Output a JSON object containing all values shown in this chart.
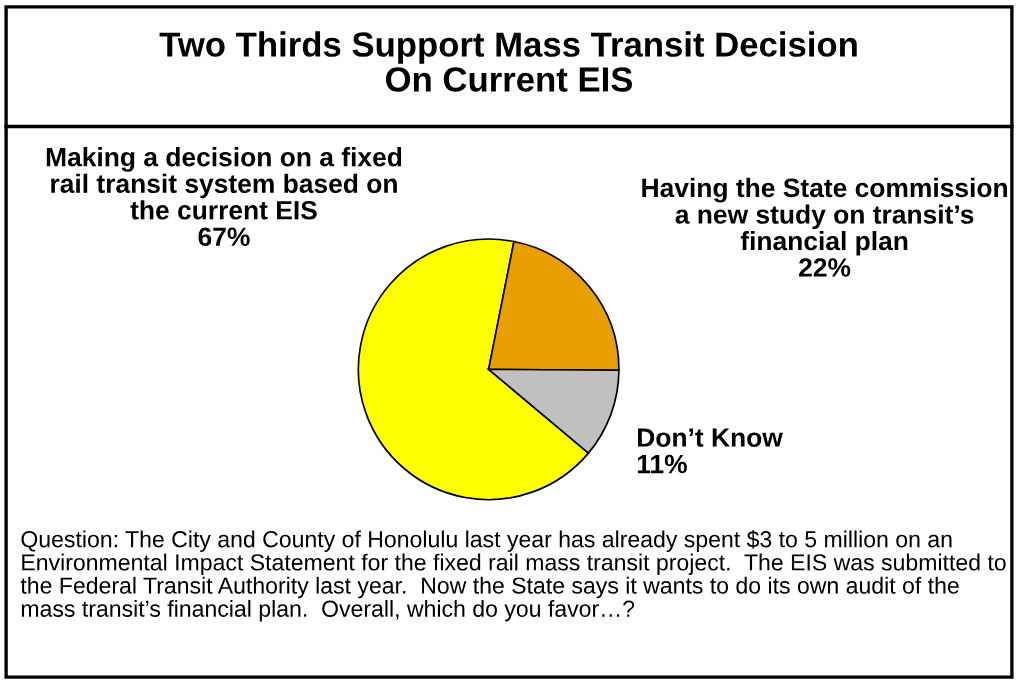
{
  "chart_data": {
    "type": "pie",
    "title": "Two Thirds Support Mass Transit Decision\nOn Current EIS",
    "categories": [
      "Making a decision on a fixed\nrail transit system based on\nthe current EIS",
      "Having the State commission\na new study on transit’s\nfinancial plan",
      "Don’t Know"
    ],
    "values": [
      67,
      22,
      11
    ],
    "value_labels": [
      "67%",
      "22%",
      "11%"
    ],
    "colors": [
      "#ffff00",
      "#e8a000",
      "#c0c0c0"
    ],
    "annotations": [
      "Question: The City and County of Honolulu last year has already spent $3 to 5 million on an Environmental Impact Statement for the fixed rail mass transit project.  The EIS was submitted to the Federal Transit Authority last year.  Now the State says it wants to do its own audit of the mass transit’s financial plan.  Overall, which do you favor…?"
    ]
  }
}
